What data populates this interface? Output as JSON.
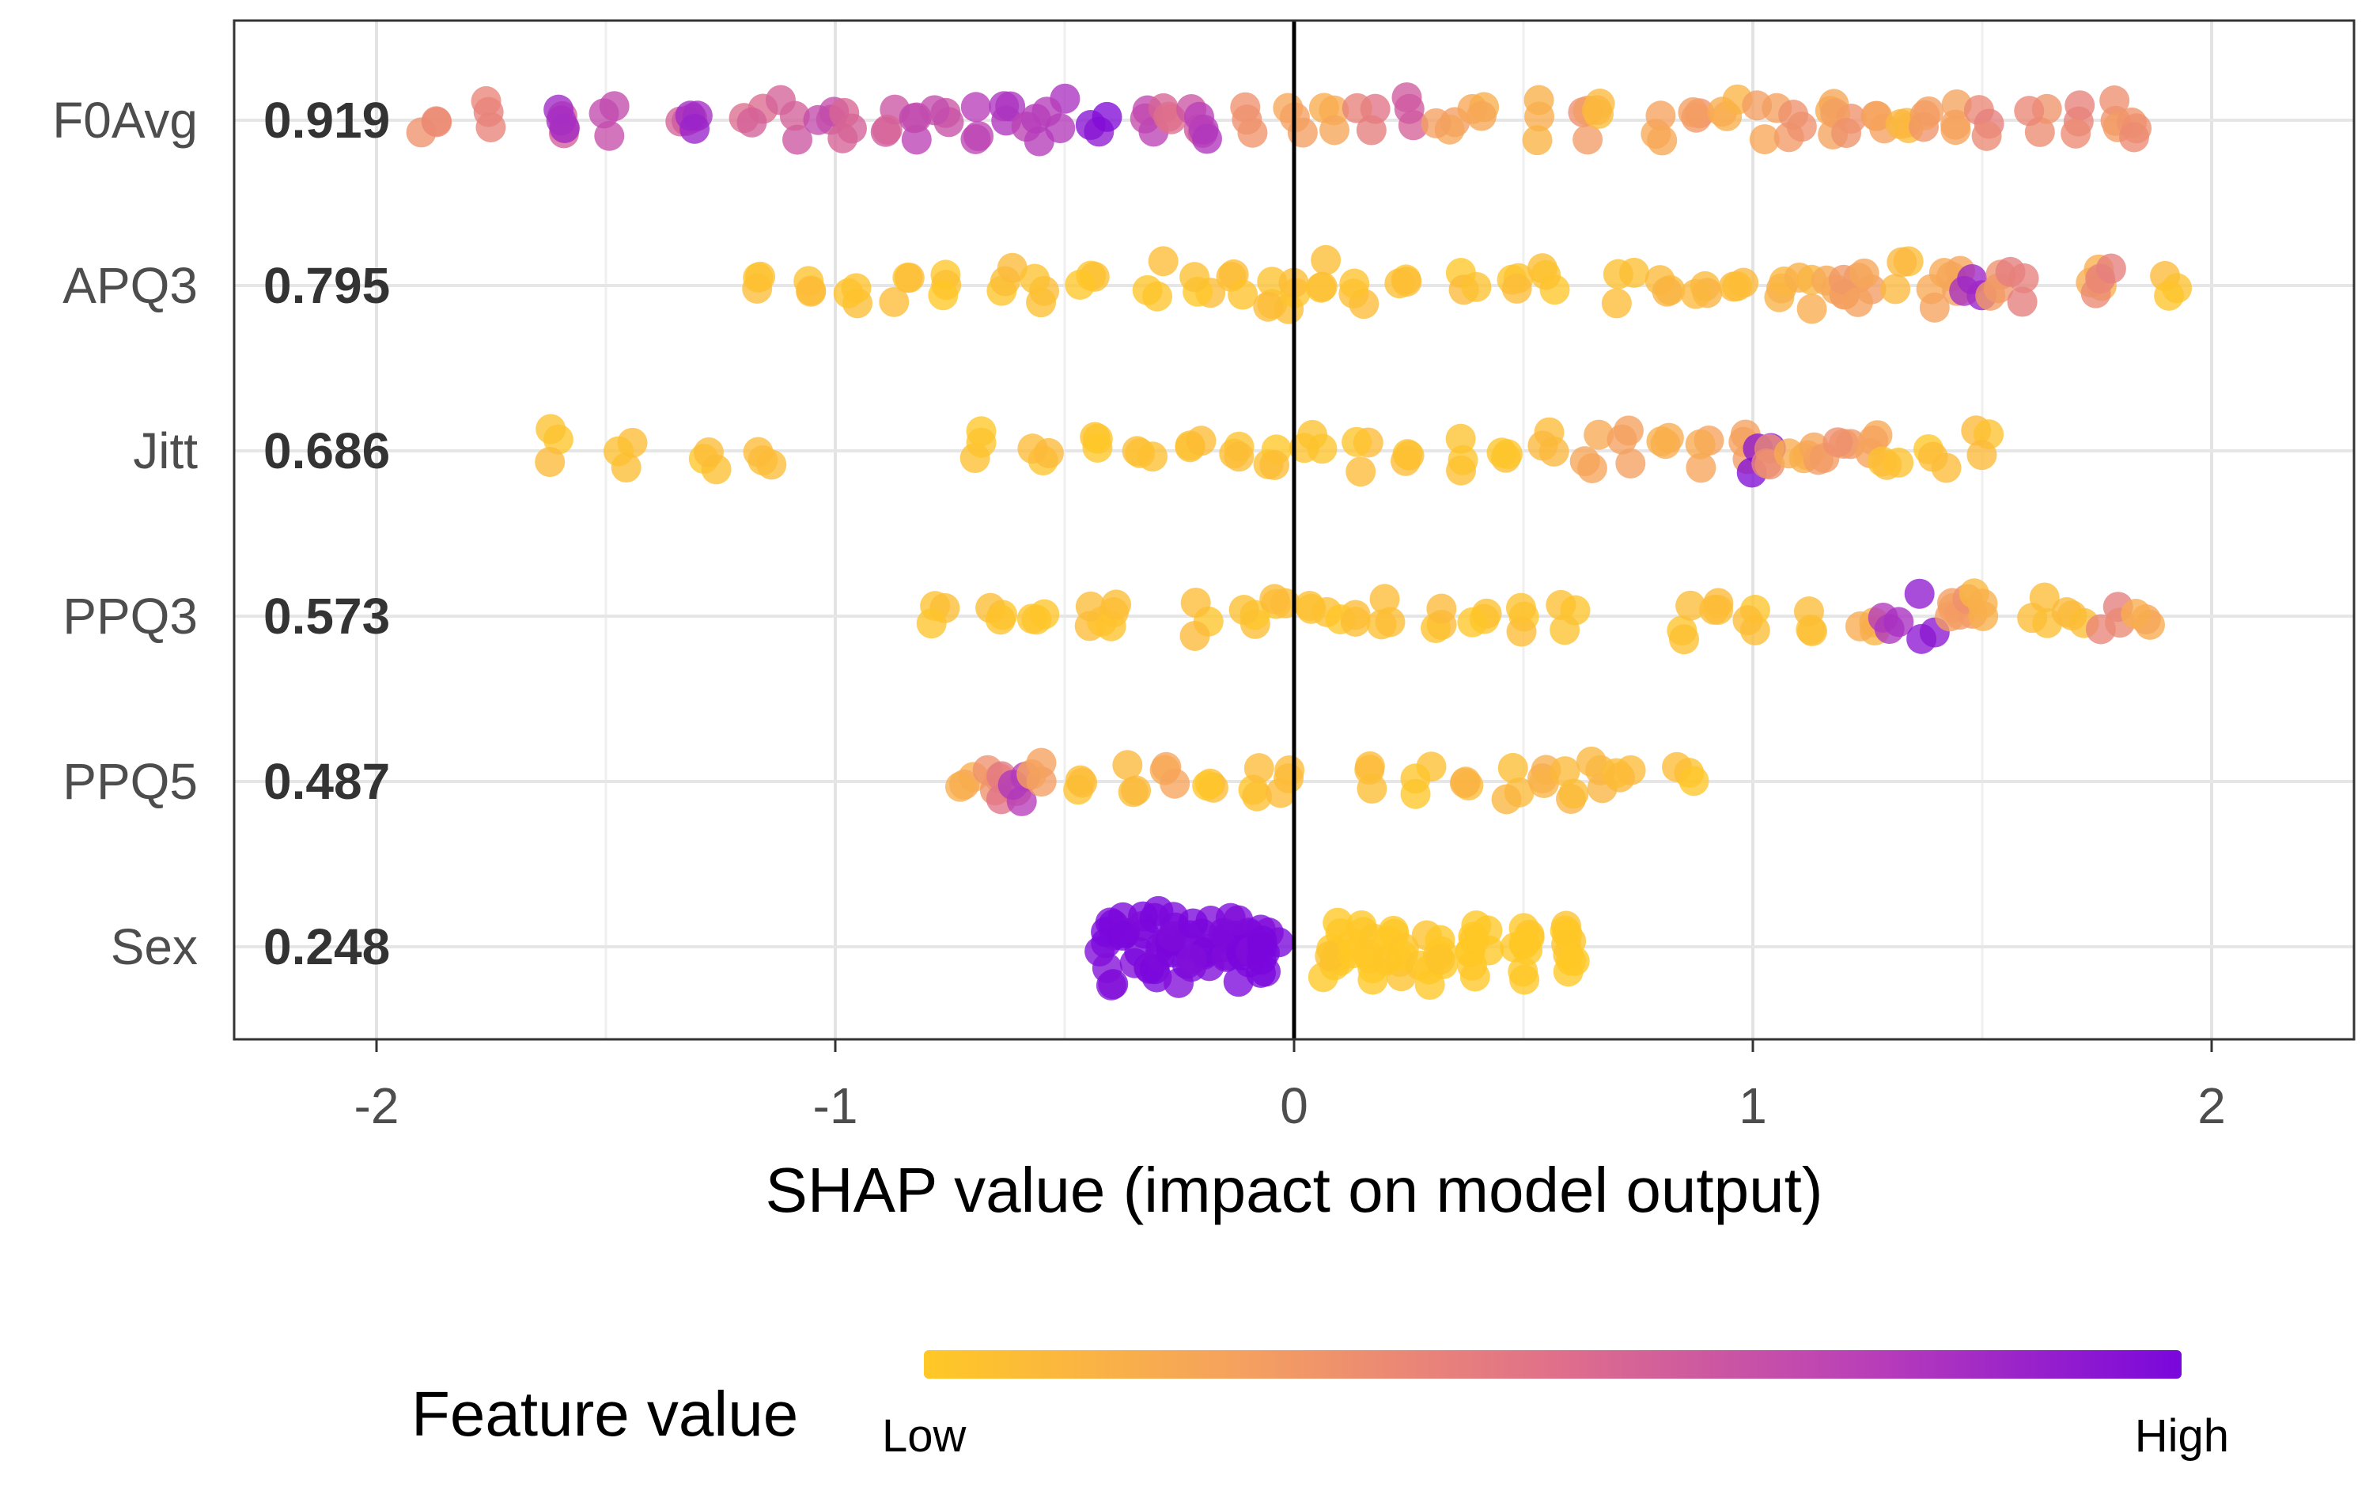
{
  "chart_data": {
    "type": "scatter",
    "subtype": "shap-beeswarm",
    "xlabel": "SHAP value (impact on model output)",
    "xlim": [
      -2.35,
      2.3
    ],
    "xticks": [
      -2,
      -1,
      0,
      1,
      2
    ],
    "xtick_labels": [
      "-2",
      "-1",
      "0",
      "1",
      "2"
    ],
    "grid": true,
    "legend": {
      "title": "Feature value",
      "low_label": "Low",
      "high_label": "High",
      "placement": "bottom",
      "colors": [
        "#FFC825",
        "#F5A15F",
        "#E0708A",
        "#B93FB8",
        "#7A07DC"
      ]
    },
    "features": [
      {
        "name": "F0Avg",
        "importance": "0.919",
        "points": [
          [
            -1.88,
            0.35
          ],
          [
            -1.77,
            0.4
          ],
          [
            -1.61,
            0.6
          ],
          [
            -1.6,
            0.85
          ],
          [
            -1.5,
            0.7
          ],
          [
            -1.33,
            0.6
          ],
          [
            -1.32,
            0.85
          ],
          [
            -1.18,
            0.55
          ],
          [
            -1.1,
            0.6
          ],
          [
            -1.02,
            0.65
          ],
          [
            -0.97,
            0.55
          ],
          [
            -0.87,
            0.6
          ],
          [
            -0.84,
            0.7
          ],
          [
            -0.77,
            0.65
          ],
          [
            -0.7,
            0.75
          ],
          [
            -0.63,
            0.8
          ],
          [
            -0.57,
            0.75
          ],
          [
            -0.52,
            0.8
          ],
          [
            -0.43,
            0.95
          ],
          [
            -0.32,
            0.7
          ],
          [
            -0.27,
            0.55
          ],
          [
            -0.22,
            0.6
          ],
          [
            -0.2,
            0.75
          ],
          [
            -0.1,
            0.3
          ],
          [
            0.0,
            0.25
          ],
          [
            0.07,
            0.2
          ],
          [
            0.16,
            0.45
          ],
          [
            0.24,
            0.6
          ],
          [
            0.33,
            0.25
          ],
          [
            0.4,
            0.2
          ],
          [
            0.52,
            0.15
          ],
          [
            0.62,
            0.3
          ],
          [
            0.68,
            0.1
          ],
          [
            0.79,
            0.2
          ],
          [
            0.87,
            0.3
          ],
          [
            0.95,
            0.15
          ],
          [
            1.03,
            0.25
          ],
          [
            1.09,
            0.3
          ],
          [
            1.16,
            0.2
          ],
          [
            1.2,
            0.3
          ],
          [
            1.27,
            0.25
          ],
          [
            1.33,
            0.1
          ],
          [
            1.38,
            0.3
          ],
          [
            1.46,
            0.25
          ],
          [
            1.51,
            0.4
          ],
          [
            1.62,
            0.35
          ],
          [
            1.7,
            0.4
          ],
          [
            1.78,
            0.3
          ],
          [
            1.82,
            0.35
          ]
        ]
      },
      {
        "name": "APQ3",
        "importance": "0.795",
        "points": [
          [
            -1.15,
            0.05
          ],
          [
            -1.05,
            0.05
          ],
          [
            -0.95,
            0.05
          ],
          [
            -0.85,
            0.05
          ],
          [
            -0.78,
            0.05
          ],
          [
            -0.62,
            0.05
          ],
          [
            -0.55,
            0.05
          ],
          [
            -0.45,
            0.05
          ],
          [
            -0.3,
            0.05
          ],
          [
            -0.2,
            0.05
          ],
          [
            -0.12,
            0.05
          ],
          [
            -0.05,
            0.05
          ],
          [
            0.0,
            0.05
          ],
          [
            0.05,
            0.05
          ],
          [
            0.15,
            0.05
          ],
          [
            0.25,
            0.05
          ],
          [
            0.38,
            0.05
          ],
          [
            0.48,
            0.05
          ],
          [
            0.56,
            0.05
          ],
          [
            0.72,
            0.05
          ],
          [
            0.8,
            0.1
          ],
          [
            0.88,
            0.1
          ],
          [
            0.98,
            0.1
          ],
          [
            1.05,
            0.15
          ],
          [
            1.12,
            0.15
          ],
          [
            1.18,
            0.2
          ],
          [
            1.22,
            0.3
          ],
          [
            1.25,
            0.25
          ],
          [
            1.32,
            0.1
          ],
          [
            1.4,
            0.2
          ],
          [
            1.45,
            0.25
          ],
          [
            1.48,
            0.85
          ],
          [
            1.52,
            0.3
          ],
          [
            1.58,
            0.4
          ],
          [
            1.75,
            0.15
          ],
          [
            1.77,
            0.4
          ],
          [
            1.92,
            0.05
          ]
        ]
      },
      {
        "name": "Jitt",
        "importance": "0.686",
        "points": [
          [
            -1.61,
            0.05
          ],
          [
            -1.45,
            0.05
          ],
          [
            -1.28,
            0.05
          ],
          [
            -1.15,
            0.05
          ],
          [
            -0.68,
            0.05
          ],
          [
            -0.55,
            0.05
          ],
          [
            -0.45,
            0.05
          ],
          [
            -0.33,
            0.05
          ],
          [
            -0.22,
            0.05
          ],
          [
            -0.12,
            0.05
          ],
          [
            -0.04,
            0.05
          ],
          [
            0.04,
            0.05
          ],
          [
            0.14,
            0.05
          ],
          [
            0.24,
            0.05
          ],
          [
            0.35,
            0.05
          ],
          [
            0.45,
            0.05
          ],
          [
            0.55,
            0.1
          ],
          [
            0.65,
            0.2
          ],
          [
            0.72,
            0.25
          ],
          [
            0.8,
            0.15
          ],
          [
            0.9,
            0.2
          ],
          [
            0.98,
            0.25
          ],
          [
            1.02,
            0.95
          ],
          [
            1.05,
            0.35
          ],
          [
            1.1,
            0.2
          ],
          [
            1.15,
            0.25
          ],
          [
            1.2,
            0.3
          ],
          [
            1.25,
            0.2
          ],
          [
            1.3,
            0.05
          ],
          [
            1.4,
            0.05
          ],
          [
            1.5,
            0.05
          ]
        ]
      },
      {
        "name": "PPQ3",
        "importance": "0.573",
        "points": [
          [
            -0.77,
            0.05
          ],
          [
            -0.65,
            0.05
          ],
          [
            -0.55,
            0.05
          ],
          [
            -0.43,
            0.05
          ],
          [
            -0.38,
            0.05
          ],
          [
            -0.2,
            0.05
          ],
          [
            -0.1,
            0.05
          ],
          [
            -0.03,
            0.05
          ],
          [
            0.05,
            0.05
          ],
          [
            0.12,
            0.05
          ],
          [
            0.2,
            0.05
          ],
          [
            0.3,
            0.05
          ],
          [
            0.4,
            0.05
          ],
          [
            0.5,
            0.05
          ],
          [
            0.6,
            0.05
          ],
          [
            0.85,
            0.05
          ],
          [
            0.93,
            0.05
          ],
          [
            1.0,
            0.05
          ],
          [
            1.12,
            0.05
          ],
          [
            1.25,
            0.15
          ],
          [
            1.3,
            0.8
          ],
          [
            1.38,
            0.9
          ],
          [
            1.42,
            0.25
          ],
          [
            1.47,
            0.3
          ],
          [
            1.5,
            0.15
          ],
          [
            1.62,
            0.05
          ],
          [
            1.7,
            0.05
          ],
          [
            1.78,
            0.4
          ],
          [
            1.85,
            0.2
          ]
        ]
      },
      {
        "name": "PPQ5",
        "importance": "0.487",
        "points": [
          [
            -0.72,
            0.2
          ],
          [
            -0.66,
            0.3
          ],
          [
            -0.62,
            0.5
          ],
          [
            -0.6,
            0.75
          ],
          [
            -0.55,
            0.25
          ],
          [
            -0.46,
            0.05
          ],
          [
            -0.36,
            0.1
          ],
          [
            -0.28,
            0.2
          ],
          [
            -0.18,
            0.05
          ],
          [
            -0.08,
            0.05
          ],
          [
            -0.02,
            0.05
          ],
          [
            0.18,
            0.05
          ],
          [
            0.28,
            0.05
          ],
          [
            0.38,
            0.1
          ],
          [
            0.48,
            0.1
          ],
          [
            0.55,
            0.15
          ],
          [
            0.6,
            0.1
          ],
          [
            0.65,
            0.1
          ],
          [
            0.72,
            0.1
          ],
          [
            0.85,
            0.05
          ]
        ]
      },
      {
        "name": "Sex",
        "importance": "0.248",
        "points": [
          [
            -0.4,
            1.0
          ],
          [
            -0.35,
            1.0
          ],
          [
            -0.3,
            1.0
          ],
          [
            -0.25,
            1.0
          ],
          [
            -0.2,
            1.0
          ],
          [
            -0.15,
            1.0
          ],
          [
            -0.1,
            1.0
          ],
          [
            -0.05,
            1.0
          ],
          [
            0.08,
            0.0
          ],
          [
            0.15,
            0.0
          ],
          [
            0.22,
            0.0
          ],
          [
            0.3,
            0.0
          ],
          [
            0.4,
            0.0
          ],
          [
            0.5,
            0.0
          ],
          [
            0.6,
            0.0
          ]
        ]
      }
    ]
  }
}
